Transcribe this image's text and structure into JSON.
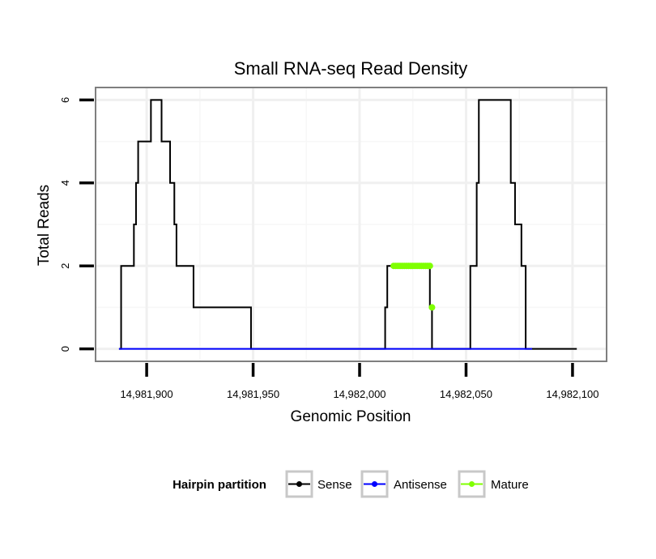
{
  "chart_data": {
    "type": "line",
    "title": "Small RNA-seq Read Density",
    "xlabel": "Genomic Position",
    "ylabel": "Total Reads",
    "xlim": [
      14981876,
      14982116
    ],
    "ylim": [
      -0.3,
      6.3
    ],
    "x_ticks": [
      14981900,
      14981950,
      14982000,
      14982050,
      14982100
    ],
    "x_tick_labels": [
      "14,981,900",
      "14,981,950",
      "14,982,000",
      "14,982,050",
      "14,982,100"
    ],
    "y_ticks": [
      0,
      2,
      4,
      6
    ],
    "y_tick_labels": [
      "0",
      "2",
      "4",
      "6"
    ],
    "legend": {
      "title": "Hairpin partition",
      "position": "bottom",
      "items": [
        {
          "label": "Sense",
          "color": "#000000"
        },
        {
          "label": "Antisense",
          "color": "#0000ff"
        },
        {
          "label": "Mature",
          "color": "#7fff00"
        }
      ]
    },
    "series": [
      {
        "name": "Sense",
        "color": "#000000",
        "step": true,
        "x": [
          14981887,
          14981888,
          14981893,
          14981894,
          14981895,
          14981896,
          14981899,
          14981902,
          14981905,
          14981907,
          14981911,
          14981912,
          14981913,
          14981914,
          14981915,
          14981922,
          14981931,
          14981932,
          14981936,
          14981949,
          14981950,
          14981978,
          14982012,
          14982013,
          14982015,
          14982033,
          14982034,
          14982051,
          14982052,
          14982054,
          14982055,
          14982056,
          14982070,
          14982071,
          14982072,
          14982073,
          14982074,
          14982075,
          14982076,
          14982077,
          14982078,
          14982079,
          14982080,
          14982081,
          14982102
        ],
        "y": [
          0,
          2,
          2,
          3,
          4,
          5,
          5,
          6,
          6,
          5,
          4,
          4,
          3,
          2,
          2,
          1,
          1,
          1,
          1,
          0,
          0,
          0,
          1,
          2,
          2,
          1,
          0,
          0,
          2,
          2,
          4,
          6,
          6,
          4,
          4,
          3,
          3,
          3,
          2,
          2,
          0,
          0,
          0,
          0,
          0
        ]
      },
      {
        "name": "Antisense",
        "color": "#0000ff",
        "step": false,
        "x": [
          14981887,
          14982081
        ],
        "y": [
          0,
          0
        ]
      },
      {
        "name": "Mature",
        "color": "#7fff00",
        "type": "points",
        "x": [
          14982016,
          14982017,
          14982018,
          14982019,
          14982020,
          14982021,
          14982022,
          14982023,
          14982024,
          14982025,
          14982026,
          14982027,
          14982028,
          14982029,
          14982030,
          14982031,
          14982032,
          14982033,
          14982034
        ],
        "y": [
          2,
          2,
          2,
          2,
          2,
          2,
          2,
          2,
          2,
          2,
          2,
          2,
          2,
          2,
          2,
          2,
          2,
          2,
          1
        ]
      }
    ]
  }
}
